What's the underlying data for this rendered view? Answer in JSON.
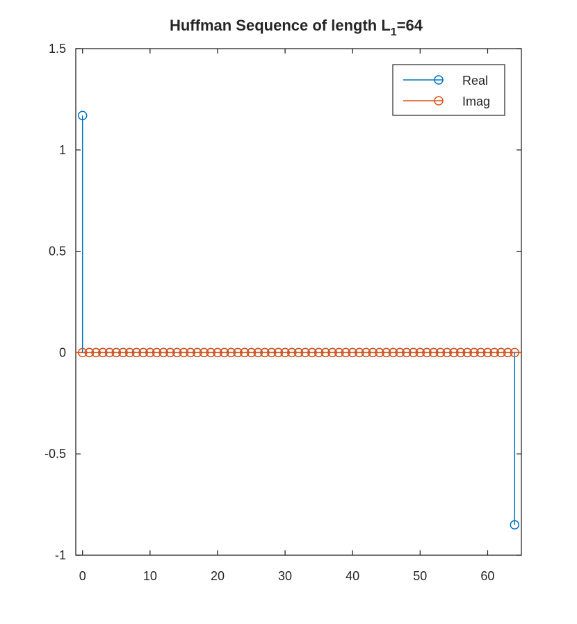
{
  "chart_data": {
    "type": "stem",
    "title": "Huffman Sequence of length  L",
    "title_subscript": "1",
    "title_suffix": "=64",
    "xlabel": "",
    "ylabel": "",
    "xlim": [
      -1,
      65
    ],
    "ylim": [
      -1,
      1.5
    ],
    "x_ticks": [
      0,
      10,
      20,
      30,
      40,
      50,
      60
    ],
    "x_tick_labels": [
      "0",
      "10",
      "20",
      "30",
      "40",
      "50",
      "60"
    ],
    "y_ticks": [
      -1,
      -0.5,
      0,
      0.5,
      1,
      1.5
    ],
    "y_tick_labels": [
      "-1",
      "-0.5",
      "0",
      "0.5",
      "1",
      "1.5"
    ],
    "grid": false,
    "legend_position": "top-right",
    "series": [
      {
        "name": "Real",
        "color": "#0072BD",
        "x": [
          0,
          1,
          2,
          3,
          4,
          5,
          6,
          7,
          8,
          9,
          10,
          11,
          12,
          13,
          14,
          15,
          16,
          17,
          18,
          19,
          20,
          21,
          22,
          23,
          24,
          25,
          26,
          27,
          28,
          29,
          30,
          31,
          32,
          33,
          34,
          35,
          36,
          37,
          38,
          39,
          40,
          41,
          42,
          43,
          44,
          45,
          46,
          47,
          48,
          49,
          50,
          51,
          52,
          53,
          54,
          55,
          56,
          57,
          58,
          59,
          60,
          61,
          62,
          63,
          64
        ],
        "values": [
          1.17,
          0,
          0,
          0,
          0,
          0,
          0,
          0,
          0,
          0,
          0,
          0,
          0,
          0,
          0,
          0,
          0,
          0,
          0,
          0,
          0,
          0,
          0,
          0,
          0,
          0,
          0,
          0,
          0,
          0,
          0,
          0,
          0,
          0,
          0,
          0,
          0,
          0,
          0,
          0,
          0,
          0,
          0,
          0,
          0,
          0,
          0,
          0,
          0,
          0,
          0,
          0,
          0,
          0,
          0,
          0,
          0,
          0,
          0,
          0,
          0,
          0,
          0,
          0,
          -0.85
        ]
      },
      {
        "name": "Imag",
        "color": "#D95319",
        "x": [
          0,
          1,
          2,
          3,
          4,
          5,
          6,
          7,
          8,
          9,
          10,
          11,
          12,
          13,
          14,
          15,
          16,
          17,
          18,
          19,
          20,
          21,
          22,
          23,
          24,
          25,
          26,
          27,
          28,
          29,
          30,
          31,
          32,
          33,
          34,
          35,
          36,
          37,
          38,
          39,
          40,
          41,
          42,
          43,
          44,
          45,
          46,
          47,
          48,
          49,
          50,
          51,
          52,
          53,
          54,
          55,
          56,
          57,
          58,
          59,
          60,
          61,
          62,
          63,
          64
        ],
        "values": [
          0,
          0,
          0,
          0,
          0,
          0,
          0,
          0,
          0,
          0,
          0,
          0,
          0,
          0,
          0,
          0,
          0,
          0,
          0,
          0,
          0,
          0,
          0,
          0,
          0,
          0,
          0,
          0,
          0,
          0,
          0,
          0,
          0,
          0,
          0,
          0,
          0,
          0,
          0,
          0,
          0,
          0,
          0,
          0,
          0,
          0,
          0,
          0,
          0,
          0,
          0,
          0,
          0,
          0,
          0,
          0,
          0,
          0,
          0,
          0,
          0,
          0,
          0,
          0,
          0
        ]
      }
    ]
  }
}
